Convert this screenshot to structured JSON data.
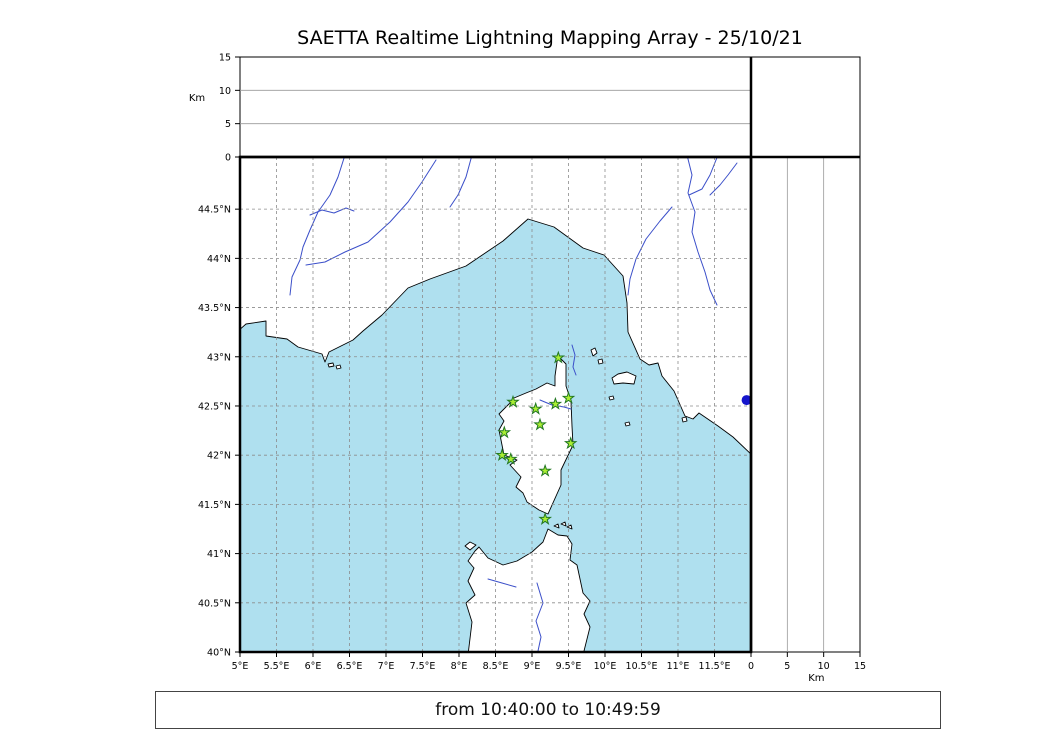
{
  "title": "SAETTA Realtime Lightning Mapping Array - 25/10/21",
  "footer": {
    "text": "from 10:40:00 to 10:49:59"
  },
  "colors": {
    "sea": "#afe0ef",
    "land": "#ffffff",
    "coast": "#000000",
    "river": "#3b4fc9",
    "grid": "#8c8c8c",
    "panel_grid": "#9a9a9a",
    "border": "#000000",
    "station_fill": "#aaee33",
    "station_stroke": "#227722",
    "extra_marker": "#1515cc"
  },
  "chart_data": {
    "type": "scatter",
    "title": "SAETTA Realtime Lightning Mapping Array - 25/10/21",
    "description": "Map of Corsica and NW Mediterranean with SAETTA lightning mapping array stations (green stars). Altitude cross-section panels (0-15 km) are empty: no lightning sources in displayed window.",
    "map_panel": {
      "lon_range": [
        5.0,
        12.0
      ],
      "lat_range": [
        40.0,
        45.03
      ],
      "grid": "dashed, 0.5 degree",
      "lon_ticks": [
        {
          "v": 5.0,
          "label": "5°E"
        },
        {
          "v": 5.5,
          "label": "5.5°E"
        },
        {
          "v": 6.0,
          "label": "6°E"
        },
        {
          "v": 6.5,
          "label": "6.5°E"
        },
        {
          "v": 7.0,
          "label": "7°E"
        },
        {
          "v": 7.5,
          "label": "7.5°E"
        },
        {
          "v": 8.0,
          "label": "8°E"
        },
        {
          "v": 8.5,
          "label": "8.5°E"
        },
        {
          "v": 9.0,
          "label": "9°E"
        },
        {
          "v": 9.5,
          "label": "9.5°E"
        },
        {
          "v": 10.0,
          "label": "10°E"
        },
        {
          "v": 10.5,
          "label": "10.5°E"
        },
        {
          "v": 11.0,
          "label": "11°E"
        },
        {
          "v": 11.5,
          "label": "11.5°E"
        }
      ],
      "lat_ticks": [
        {
          "v": 44.5,
          "label": "44.5°N"
        },
        {
          "v": 44.0,
          "label": "44°N"
        },
        {
          "v": 43.5,
          "label": "43.5°N"
        },
        {
          "v": 43.0,
          "label": "43°N"
        },
        {
          "v": 42.5,
          "label": "42.5°N"
        },
        {
          "v": 42.0,
          "label": "42°N"
        },
        {
          "v": 41.5,
          "label": "41.5°N"
        },
        {
          "v": 41.0,
          "label": "41°N"
        },
        {
          "v": 40.5,
          "label": "40.5°N"
        },
        {
          "v": 40.0,
          "label": "40°N"
        }
      ]
    },
    "altitude_axis": {
      "label": "Km",
      "range": [
        0,
        15
      ],
      "gridlines": [
        5,
        10
      ],
      "ticks": [
        {
          "v": 0,
          "label": "0"
        },
        {
          "v": 5,
          "label": "5"
        },
        {
          "v": 10,
          "label": "10"
        },
        {
          "v": 15,
          "label": "15"
        }
      ]
    },
    "lightning_points": [],
    "stations": [
      {
        "lon": 9.36,
        "lat": 42.99
      },
      {
        "lon": 8.74,
        "lat": 42.54
      },
      {
        "lon": 9.05,
        "lat": 42.47
      },
      {
        "lon": 9.32,
        "lat": 42.52
      },
      {
        "lon": 9.5,
        "lat": 42.58
      },
      {
        "lon": 9.11,
        "lat": 42.31
      },
      {
        "lon": 8.62,
        "lat": 42.23
      },
      {
        "lon": 9.53,
        "lat": 42.12
      },
      {
        "lon": 8.59,
        "lat": 42.0
      },
      {
        "lon": 8.71,
        "lat": 41.96
      },
      {
        "lon": 9.18,
        "lat": 41.84
      },
      {
        "lon": 9.18,
        "lat": 41.35
      }
    ],
    "extra_marker": {
      "lon": 11.94,
      "lat": 42.56
    }
  }
}
